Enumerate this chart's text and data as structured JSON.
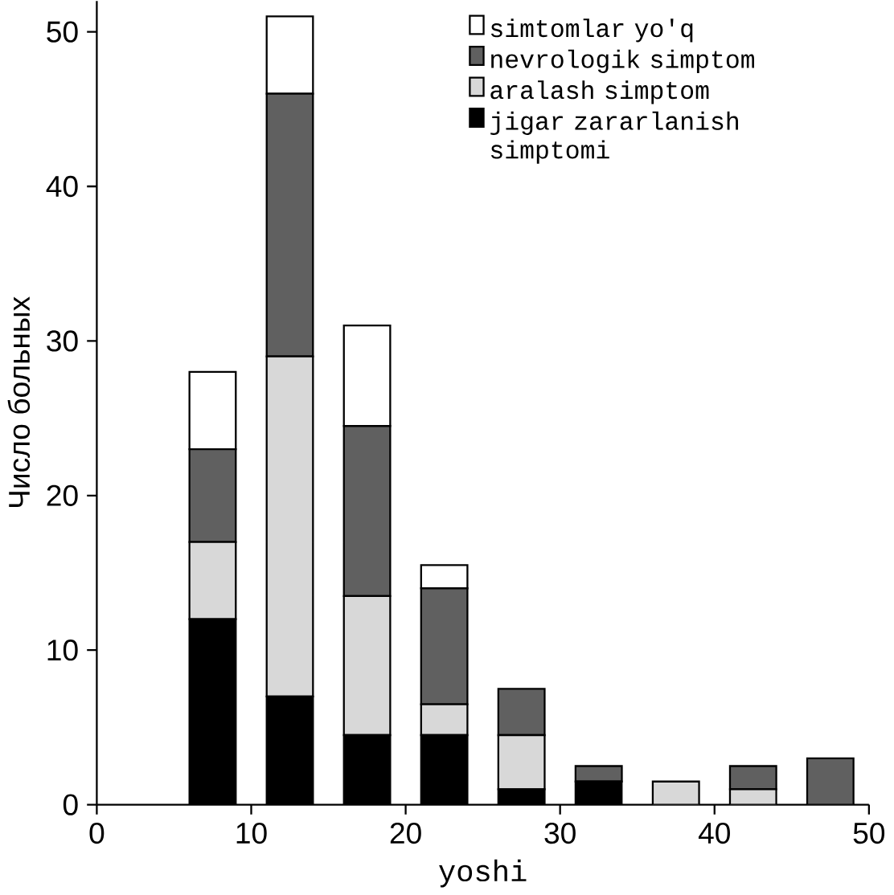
{
  "chart_data": {
    "type": "bar",
    "stacked": true,
    "xlabel": "yoshi",
    "ylabel": "Число больных",
    "x": [
      7.5,
      12.5,
      17.5,
      22.5,
      27.5,
      32.5,
      37.5,
      42.5,
      47.5
    ],
    "xlim": [
      0,
      50
    ],
    "ylim": [
      0,
      52
    ],
    "xticks": [
      0,
      10,
      20,
      30,
      40,
      50
    ],
    "yticks": [
      0,
      10,
      20,
      30,
      40,
      50
    ],
    "legend": "top right",
    "series": [
      {
        "name": "jigar zararlanish simptomi",
        "color": "#000000",
        "values": [
          12,
          7,
          4.5,
          4.5,
          1,
          1.5,
          0,
          0,
          0
        ]
      },
      {
        "name": "aralash simptom",
        "color": "#d8d8d8",
        "values": [
          5,
          22,
          9,
          2,
          3.5,
          0,
          1.5,
          1,
          0
        ]
      },
      {
        "name": "nevrologik simptom",
        "color": "#606060",
        "values": [
          6,
          17,
          11,
          7.5,
          3,
          1,
          0,
          1.5,
          3
        ]
      },
      {
        "name": "simtomlar yo'q",
        "color": "#ffffff",
        "values": [
          5,
          5,
          6.5,
          1.5,
          0,
          0,
          0,
          0,
          0
        ]
      }
    ]
  }
}
